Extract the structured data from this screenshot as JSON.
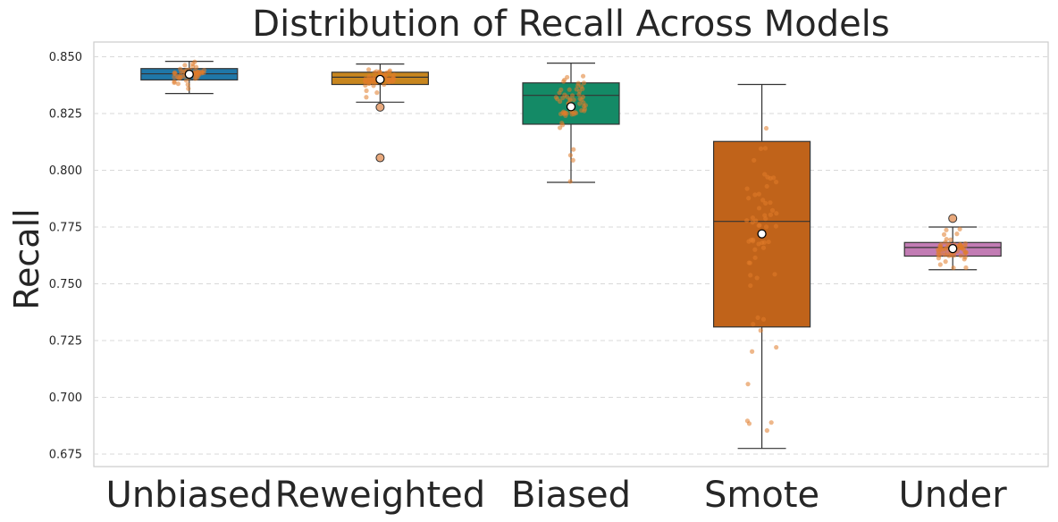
{
  "chart_data": {
    "type": "box",
    "title": "Distribution of Recall Across Models",
    "ylabel": "Recall",
    "xlabel": "",
    "ylim": [
      0.6695,
      0.8565
    ],
    "yticks": [
      "0.675",
      "0.700",
      "0.725",
      "0.750",
      "0.775",
      "0.800",
      "0.825",
      "0.850"
    ],
    "grid": "y-dashed",
    "categories": [
      "Unbiased",
      "Reweighted",
      "Biased",
      "Smote",
      "Under"
    ],
    "colors": [
      "#1f77a8",
      "#c8861e",
      "#148a66",
      "#c0631a",
      "#c27cb4"
    ],
    "point_color": "#e07b2a",
    "series": [
      {
        "name": "Unbiased",
        "q1": 0.8398,
        "median": 0.8425,
        "q3": 0.8448,
        "whisker_low": 0.8338,
        "whisker_high": 0.848,
        "mean": 0.8423,
        "outliers": [],
        "range": [
          0.8345,
          0.8478
        ]
      },
      {
        "name": "Reweighted",
        "q1": 0.8378,
        "median": 0.841,
        "q3": 0.8432,
        "whisker_low": 0.83,
        "whisker_high": 0.8468,
        "mean": 0.84,
        "outliers": [
          0.8278,
          0.8055
        ],
        "range": [
          0.831,
          0.8465
        ]
      },
      {
        "name": "Biased",
        "q1": 0.8203,
        "median": 0.833,
        "q3": 0.8385,
        "whisker_low": 0.7947,
        "whisker_high": 0.8472,
        "mean": 0.828,
        "outliers": [],
        "range": [
          0.795,
          0.847
        ]
      },
      {
        "name": "Smote",
        "q1": 0.731,
        "median": 0.7775,
        "q3": 0.8127,
        "whisker_low": 0.6775,
        "whisker_high": 0.8378,
        "mean": 0.772,
        "outliers": [],
        "range": [
          0.678,
          0.8375
        ]
      },
      {
        "name": "Under",
        "q1": 0.7622,
        "median": 0.766,
        "q3": 0.7682,
        "whisker_low": 0.7562,
        "whisker_high": 0.775,
        "mean": 0.7655,
        "outliers": [
          0.7788
        ],
        "range": [
          0.7565,
          0.7748
        ]
      }
    ]
  }
}
